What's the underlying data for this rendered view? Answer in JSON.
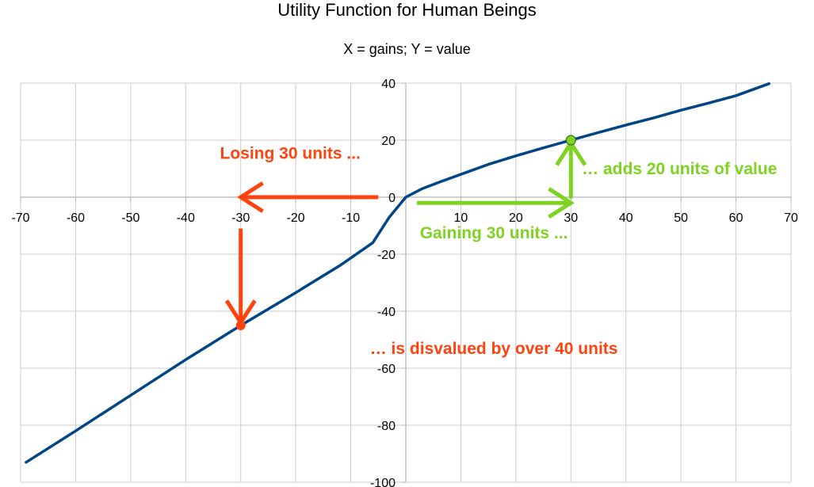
{
  "chart_data": {
    "type": "line",
    "title": "Utility Function for Human Beings",
    "subtitle": "X = gains; Y = value",
    "xlabel": "",
    "ylabel": "",
    "xlim": [
      -70,
      70
    ],
    "ylim": [
      -100,
      40
    ],
    "x_ticks": [
      -70,
      -60,
      -50,
      -40,
      -30,
      -20,
      -10,
      0,
      10,
      20,
      30,
      40,
      50,
      60,
      70
    ],
    "y_ticks": [
      -100,
      -80,
      -60,
      -40,
      -20,
      0,
      20,
      40
    ],
    "grid": true,
    "colors": {
      "curve": "#004586",
      "loss": "#ff420e",
      "gain": "#7ed321",
      "grid": "#cccccc",
      "axis": "#b3b3b3"
    },
    "series": [
      {
        "x": [
          -69,
          -60,
          -50,
          -40,
          -30,
          -20,
          -12,
          -6,
          -3,
          0,
          3,
          6,
          10,
          15,
          20,
          25,
          30,
          35,
          40,
          45,
          50,
          55,
          60,
          66
        ],
        "y": [
          -93,
          -82,
          -69.5,
          -57,
          -45,
          -33.5,
          -24,
          -16,
          -7,
          0,
          3,
          5.2,
          8,
          11.5,
          14.5,
          17.3,
          20,
          22.7,
          25.3,
          27.8,
          30.5,
          33,
          35.6,
          39.8
        ]
      }
    ],
    "points": [
      {
        "x": -30,
        "y": -45,
        "color": "#ff420e"
      },
      {
        "x": 30,
        "y": 20,
        "color": "#7ed321"
      }
    ],
    "arrows": [
      {
        "from": [
          -5,
          0
        ],
        "to": [
          -30,
          0
        ],
        "color": "#ff420e"
      },
      {
        "from": [
          -30,
          -11
        ],
        "to": [
          -30,
          -44
        ],
        "color": "#ff420e"
      },
      {
        "from": [
          2,
          -2
        ],
        "to": [
          30,
          -2
        ],
        "color": "#7ed321"
      },
      {
        "from": [
          30,
          -0.5
        ],
        "to": [
          30,
          19
        ],
        "color": "#7ed321"
      }
    ],
    "annotations": [
      {
        "text": "Losing 30 units ...",
        "color": "#ff420e",
        "x": -21,
        "y": 13.5,
        "anchor": "middle"
      },
      {
        "text": "… adds 20 units of value",
        "color": "#7ed321",
        "x": 32,
        "y": 8,
        "anchor": "start"
      },
      {
        "text": "Gaining 30 units ...",
        "color": "#7ed321",
        "x": 16,
        "y": -14.5,
        "anchor": "middle"
      },
      {
        "text": "… is disvalued by over 40 units",
        "color": "#ff420e",
        "x": 16,
        "y": -55,
        "anchor": "middle"
      }
    ]
  }
}
